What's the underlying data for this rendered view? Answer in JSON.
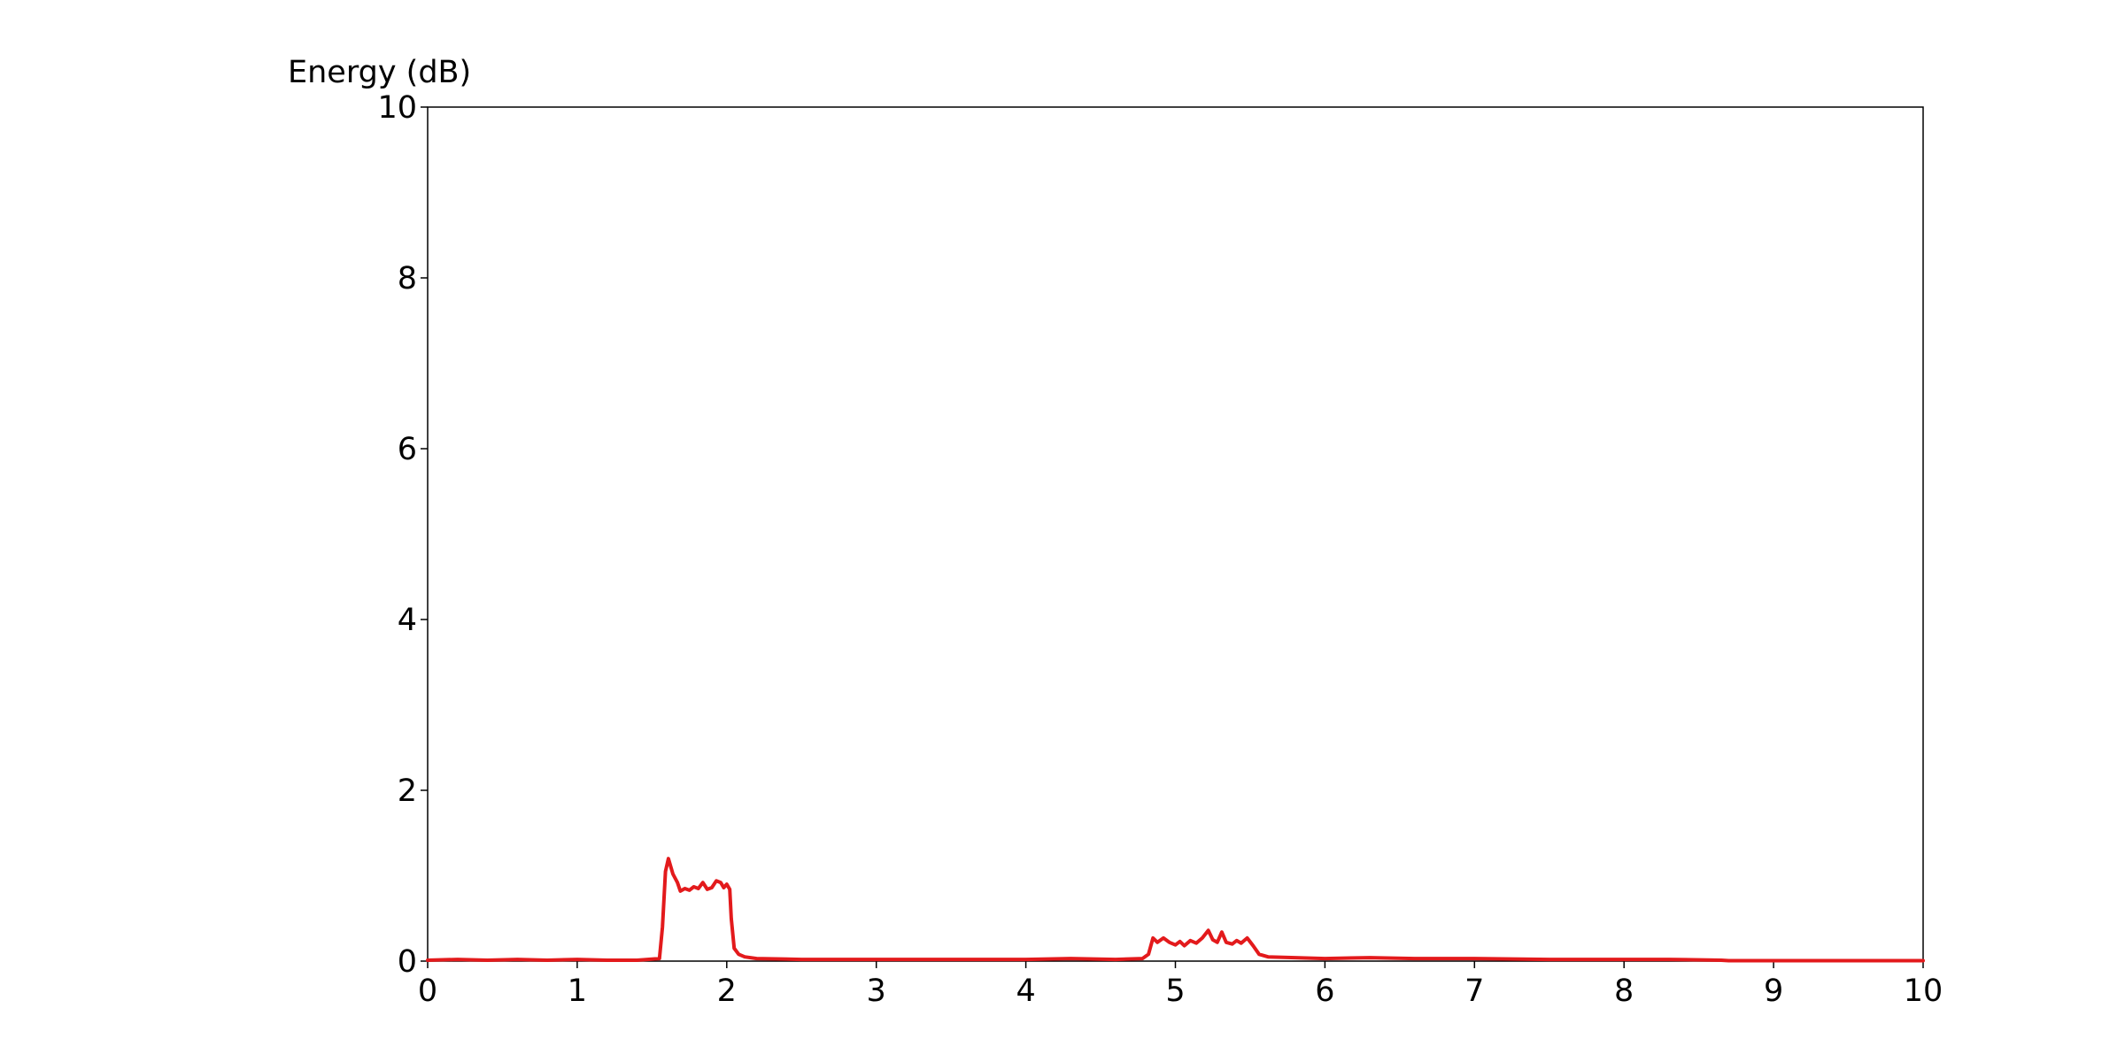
{
  "chart_data": {
    "type": "line",
    "ylabel": "Energy (dB)",
    "xlabel": "",
    "title": "",
    "xlim": [
      0,
      10
    ],
    "ylim": [
      0,
      10
    ],
    "x_ticks": [
      0,
      1,
      2,
      3,
      4,
      5,
      6,
      7,
      8,
      9,
      10
    ],
    "y_ticks": [
      0,
      2,
      4,
      6,
      8,
      10
    ],
    "grid": false,
    "colors": {
      "line": "#e31a1c",
      "axes": "#000000"
    },
    "series": [
      {
        "points": [
          [
            0.0,
            0.01
          ],
          [
            0.2,
            0.02
          ],
          [
            0.4,
            0.01
          ],
          [
            0.6,
            0.02
          ],
          [
            0.8,
            0.01
          ],
          [
            1.0,
            0.02
          ],
          [
            1.2,
            0.01
          ],
          [
            1.4,
            0.01
          ],
          [
            1.55,
            0.03
          ],
          [
            1.57,
            0.4
          ],
          [
            1.59,
            1.05
          ],
          [
            1.61,
            1.2
          ],
          [
            1.64,
            1.02
          ],
          [
            1.67,
            0.92
          ],
          [
            1.69,
            0.82
          ],
          [
            1.72,
            0.85
          ],
          [
            1.75,
            0.83
          ],
          [
            1.78,
            0.87
          ],
          [
            1.81,
            0.85
          ],
          [
            1.84,
            0.92
          ],
          [
            1.87,
            0.84
          ],
          [
            1.9,
            0.86
          ],
          [
            1.93,
            0.94
          ],
          [
            1.96,
            0.92
          ],
          [
            1.98,
            0.86
          ],
          [
            2.0,
            0.9
          ],
          [
            2.02,
            0.84
          ],
          [
            2.03,
            0.5
          ],
          [
            2.05,
            0.15
          ],
          [
            2.08,
            0.08
          ],
          [
            2.12,
            0.05
          ],
          [
            2.2,
            0.03
          ],
          [
            2.5,
            0.02
          ],
          [
            3.0,
            0.02
          ],
          [
            3.5,
            0.02
          ],
          [
            4.0,
            0.02
          ],
          [
            4.3,
            0.03
          ],
          [
            4.6,
            0.02
          ],
          [
            4.78,
            0.03
          ],
          [
            4.82,
            0.08
          ],
          [
            4.85,
            0.27
          ],
          [
            4.88,
            0.22
          ],
          [
            4.92,
            0.27
          ],
          [
            4.96,
            0.22
          ],
          [
            5.0,
            0.19
          ],
          [
            5.03,
            0.23
          ],
          [
            5.06,
            0.18
          ],
          [
            5.1,
            0.24
          ],
          [
            5.14,
            0.21
          ],
          [
            5.18,
            0.27
          ],
          [
            5.22,
            0.36
          ],
          [
            5.25,
            0.25
          ],
          [
            5.28,
            0.22
          ],
          [
            5.31,
            0.34
          ],
          [
            5.34,
            0.22
          ],
          [
            5.38,
            0.2
          ],
          [
            5.41,
            0.24
          ],
          [
            5.44,
            0.21
          ],
          [
            5.48,
            0.27
          ],
          [
            5.52,
            0.18
          ],
          [
            5.56,
            0.08
          ],
          [
            5.62,
            0.05
          ],
          [
            5.8,
            0.04
          ],
          [
            6.0,
            0.03
          ],
          [
            6.3,
            0.04
          ],
          [
            6.6,
            0.03
          ],
          [
            7.0,
            0.03
          ],
          [
            7.5,
            0.02
          ],
          [
            8.0,
            0.02
          ],
          [
            8.3,
            0.02
          ],
          [
            8.65,
            0.01
          ],
          [
            8.7,
            0.005
          ],
          [
            9.0,
            0.005
          ],
          [
            9.5,
            0.005
          ],
          [
            10.0,
            0.005
          ]
        ]
      }
    ]
  }
}
